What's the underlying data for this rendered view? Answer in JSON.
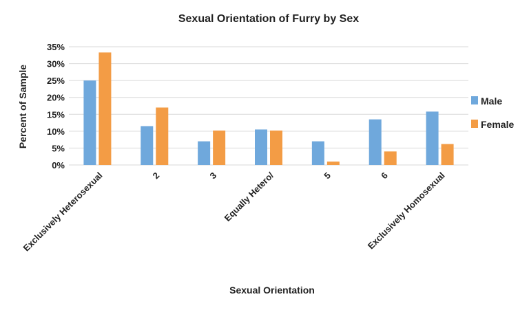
{
  "chart_data": {
    "type": "bar",
    "title": "Sexual Orientation of Furry by Sex",
    "xlabel": "Sexual Orientation",
    "ylabel": "Percent of Sample",
    "categories": [
      "Exclusively Heterosexual",
      "2",
      "3",
      "Equally Hetero/",
      "5",
      "6",
      "Exclusively Homosexual"
    ],
    "series": [
      {
        "name": "Male",
        "color": "#6fa8dc",
        "values": [
          25.0,
          11.5,
          7.0,
          10.5,
          7.0,
          13.5,
          15.8
        ]
      },
      {
        "name": "Female",
        "color": "#f39c45",
        "values": [
          33.3,
          17.0,
          10.2,
          10.2,
          1.0,
          4.0,
          6.2
        ]
      }
    ],
    "ylim": [
      0,
      35
    ],
    "yticks": [
      0,
      5,
      10,
      15,
      20,
      25,
      30,
      35
    ],
    "ytick_labels": [
      "0%",
      "5%",
      "10%",
      "15%",
      "20%",
      "25%",
      "30%",
      "35%"
    ],
    "grid": true,
    "legend_position": "right"
  }
}
